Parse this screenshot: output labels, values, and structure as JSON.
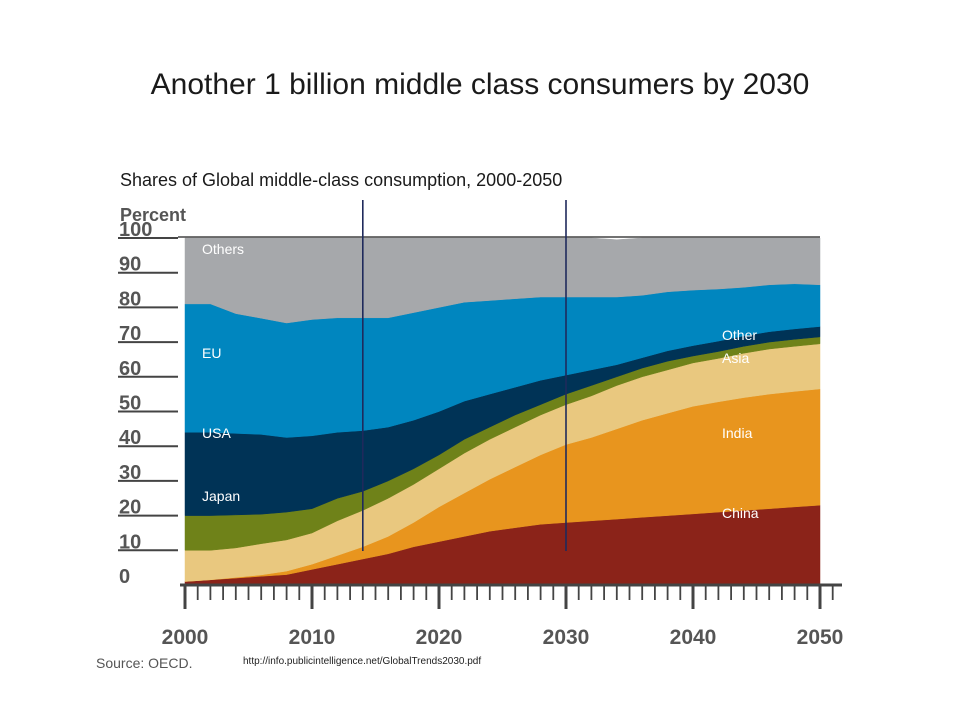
{
  "slide": {
    "title": "Another 1 billion middle class consumers by 2030",
    "subtitle": "Shares of Global middle-class consumption, 2000-2050",
    "source_url": "http://info.publicintelligence.net/GlobalTrends2030.pdf"
  },
  "chart_data": {
    "type": "area",
    "stacked": true,
    "ylabel": "Percent",
    "source": "Source: OECD.",
    "ylim": [
      0,
      100
    ],
    "yticks": [
      0,
      10,
      20,
      30,
      40,
      50,
      60,
      70,
      80,
      90,
      100
    ],
    "xticks": [
      2000,
      2010,
      2020,
      2030,
      2040,
      2050
    ],
    "xlim": [
      2000,
      2050
    ],
    "x": [
      2000,
      2002,
      2004,
      2006,
      2008,
      2010,
      2012,
      2014,
      2016,
      2018,
      2020,
      2022,
      2024,
      2026,
      2028,
      2030,
      2032,
      2034,
      2036,
      2038,
      2040,
      2042,
      2044,
      2046,
      2048,
      2050
    ],
    "series": [
      {
        "name": "China",
        "color": "#8B2319",
        "values": [
          1,
          1.5,
          2,
          2.5,
          3,
          4.5,
          6,
          7.5,
          9,
          11,
          12.5,
          14,
          15.5,
          16.5,
          17.5,
          18,
          18.5,
          19,
          19.5,
          20,
          20.5,
          21,
          21.5,
          22,
          22.5,
          23
        ]
      },
      {
        "name": "India",
        "color": "#E8951E",
        "values": [
          0,
          0,
          0.2,
          0.4,
          1,
          1.5,
          2.5,
          3.5,
          5,
          7,
          10,
          12.5,
          15,
          17.5,
          20,
          22.5,
          24,
          26,
          28,
          29.5,
          31,
          31.8,
          32.5,
          33,
          33.3,
          33.5
        ]
      },
      {
        "name": "Other Asia",
        "color": "#E9C87F",
        "values": [
          9,
          8.5,
          8.5,
          9,
          9,
          9,
          10,
          10.5,
          11,
          11,
          11,
          11.5,
          11.5,
          11.5,
          11.5,
          11.5,
          12,
          12.5,
          12.5,
          12.5,
          12.5,
          12.5,
          12.8,
          13,
          13,
          13
        ]
      },
      {
        "name": "Japan",
        "color": "#6F8219",
        "values": [
          10,
          10,
          9.5,
          8.5,
          8,
          7,
          6.5,
          5.5,
          5,
          4.5,
          4,
          4,
          3.5,
          3.5,
          3,
          3,
          3,
          2.5,
          2.5,
          2.5,
          2,
          2,
          2,
          2,
          2,
          2
        ]
      },
      {
        "name": "USA",
        "color": "#003356",
        "values": [
          24,
          24,
          23.5,
          23,
          21.5,
          21,
          19,
          17.5,
          15.5,
          14,
          12.5,
          11,
          9.5,
          8,
          7,
          5.5,
          4.5,
          3.5,
          3,
          3,
          3,
          3,
          3,
          3,
          3,
          3
        ]
      },
      {
        "name": "EU",
        "color": "#0086BF",
        "values": [
          37,
          37,
          34.5,
          33.5,
          33,
          33.5,
          33,
          32.5,
          31.5,
          31,
          30,
          28.5,
          27,
          25.5,
          24,
          22.5,
          21,
          19.5,
          18,
          17,
          16,
          15,
          14,
          13.5,
          13,
          12
        ]
      },
      {
        "name": "Others",
        "color": "#A6A8AB",
        "values": [
          19,
          19,
          21.8,
          23.1,
          24.5,
          23.5,
          23,
          23,
          23,
          21.5,
          20,
          18.5,
          18,
          17.5,
          17,
          17,
          17,
          16.5,
          16.5,
          15.5,
          15,
          14.7,
          14.2,
          13.5,
          13.2,
          13.5
        ]
      }
    ],
    "vertical_markers": [
      2014,
      2030
    ]
  }
}
